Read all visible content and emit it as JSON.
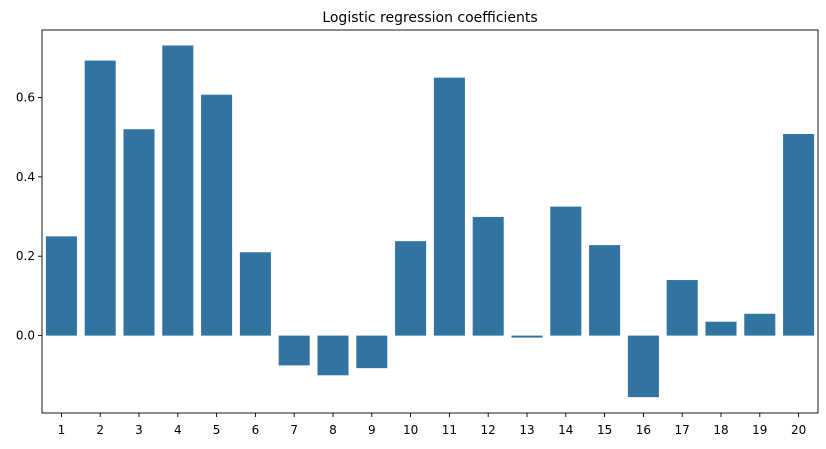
{
  "chart_data": {
    "type": "bar",
    "title": "Logistic regression coefficients",
    "xlabel": "",
    "ylabel": "",
    "categories": [
      "1",
      "2",
      "3",
      "4",
      "5",
      "6",
      "7",
      "8",
      "9",
      "10",
      "11",
      "12",
      "13",
      "14",
      "15",
      "16",
      "17",
      "18",
      "19",
      "20"
    ],
    "values": [
      0.25,
      0.693,
      0.52,
      0.731,
      0.607,
      0.21,
      -0.075,
      -0.1,
      -0.082,
      0.238,
      0.65,
      0.299,
      -0.005,
      0.325,
      0.228,
      -0.155,
      0.14,
      0.035,
      0.055,
      0.508
    ],
    "ylim": [
      -0.195,
      0.77
    ],
    "yticks": [
      0.0,
      0.2,
      0.4,
      0.6
    ],
    "ytick_labels": [
      "0.0",
      "0.2",
      "0.4",
      "0.6"
    ],
    "bar_color": "#3274a1",
    "grid": false,
    "legend": "none"
  }
}
